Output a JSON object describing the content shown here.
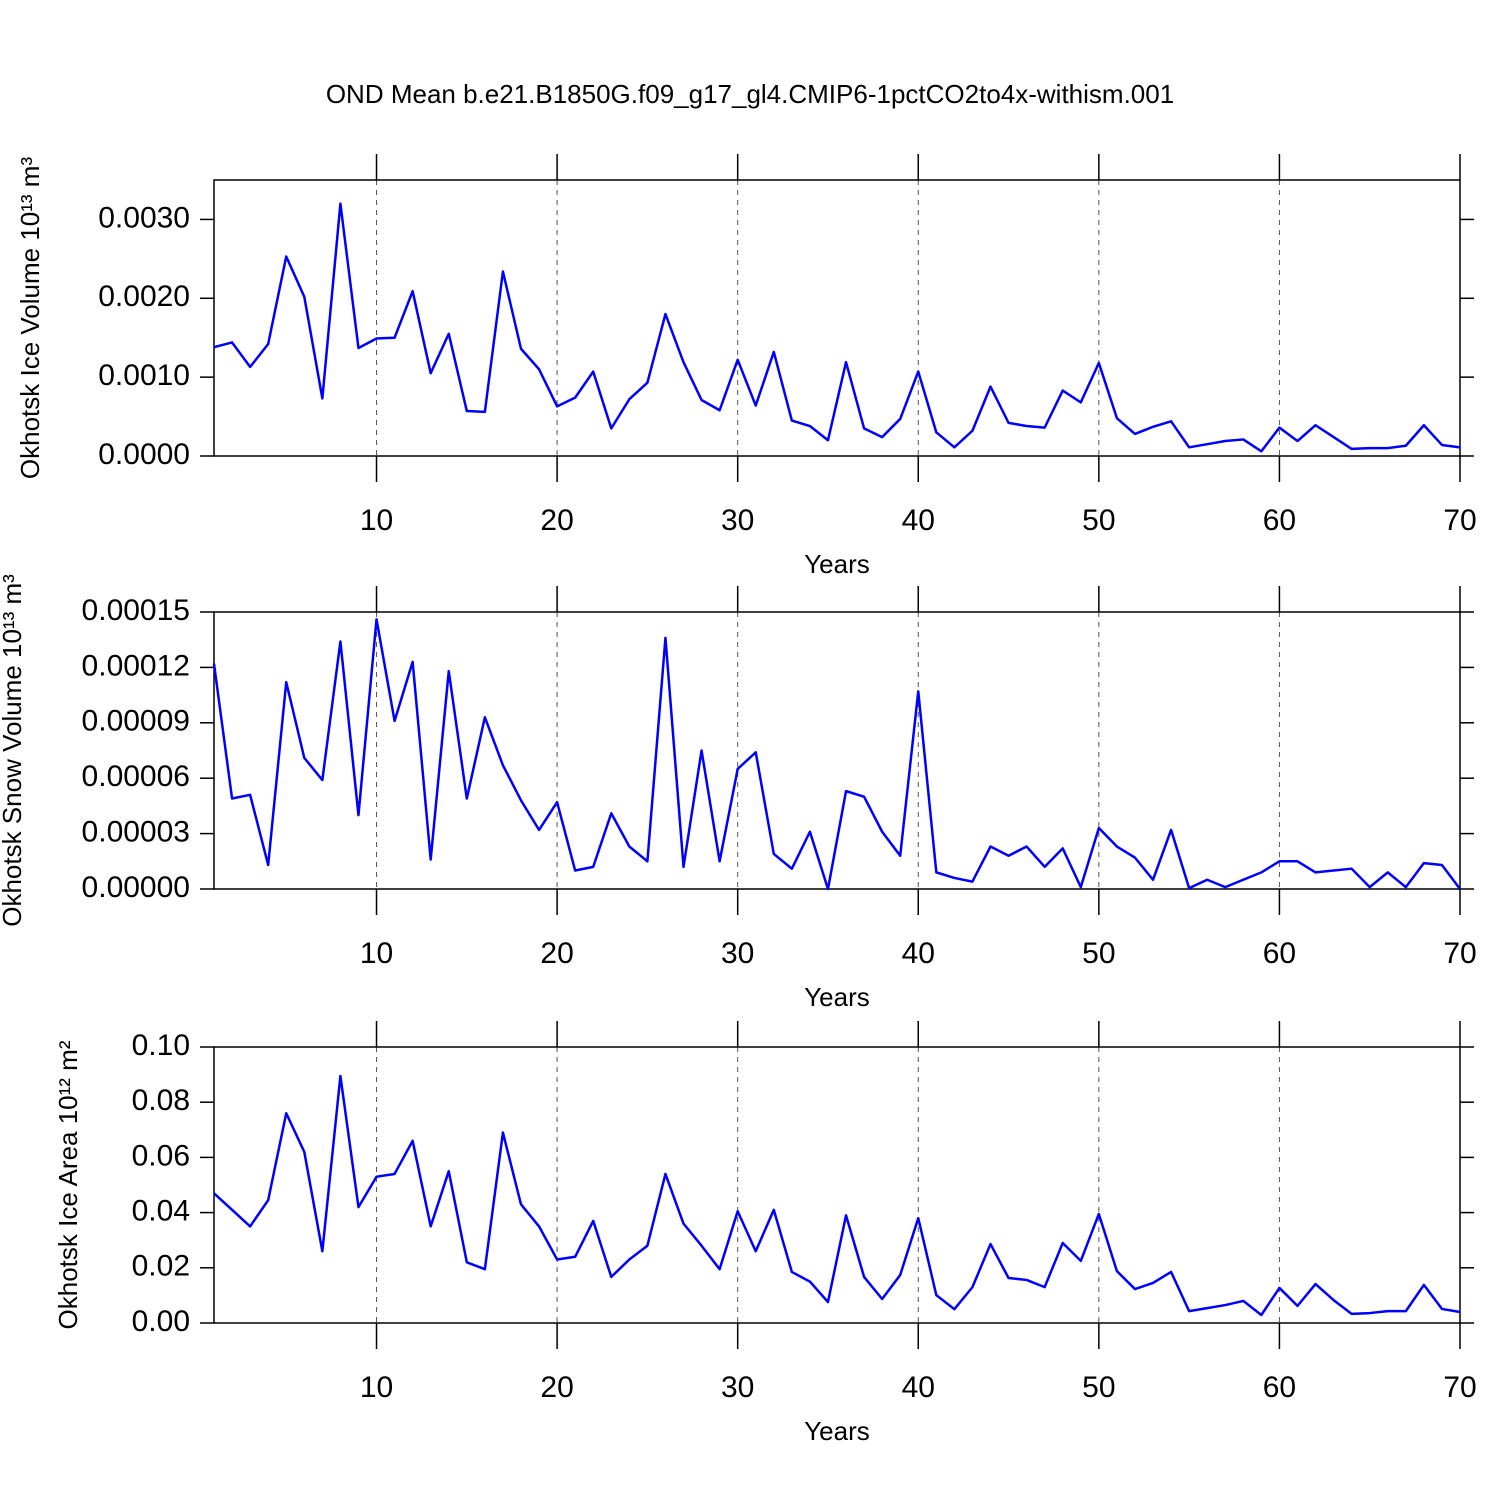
{
  "chart_data": [
    {
      "type": "line",
      "title": "OND Mean b.e21.B1850G.f09_g17_gl4.CMIP6-1pctCO2to4x-withism.001",
      "xlabel": "Years",
      "ylabel": "Okhotsk Ice Volume 10¹³ m³",
      "color": "#0000ff",
      "grid": true,
      "xlim": [
        1,
        70
      ],
      "xticks": [
        10,
        20,
        30,
        40,
        50,
        60,
        70
      ],
      "ylim": [
        0,
        0.0035
      ],
      "yticks": [
        {
          "value": 0,
          "label": "0.0000"
        },
        {
          "value": 0.001,
          "label": "0.0010"
        },
        {
          "value": 0.002,
          "label": "0.0020"
        },
        {
          "value": 0.003,
          "label": "0.0030"
        }
      ],
      "x": [
        1,
        2,
        3,
        4,
        5,
        6,
        7,
        8,
        9,
        10,
        11,
        12,
        13,
        14,
        15,
        16,
        17,
        18,
        19,
        20,
        21,
        22,
        23,
        24,
        25,
        26,
        27,
        28,
        29,
        30,
        31,
        32,
        33,
        34,
        35,
        36,
        37,
        38,
        39,
        40,
        41,
        42,
        43,
        44,
        45,
        46,
        47,
        48,
        49,
        50,
        51,
        52,
        53,
        54,
        55,
        56,
        57,
        58,
        59,
        60,
        61,
        62,
        63,
        64,
        65,
        66,
        67,
        68,
        69,
        70
      ],
      "values": [
        0.00138,
        0.00144,
        0.00113,
        0.00142,
        0.00253,
        0.00202,
        0.00073,
        0.0032,
        0.00137,
        0.00149,
        0.0015,
        0.00209,
        0.00105,
        0.00155,
        0.00057,
        0.00056,
        0.00234,
        0.00136,
        0.0011,
        0.00063,
        0.00074,
        0.00107,
        0.00035,
        0.00072,
        0.00093,
        0.0018,
        0.00119,
        0.00071,
        0.00058,
        0.00122,
        0.00064,
        0.00132,
        0.00045,
        0.00038,
        0.0002,
        0.00119,
        0.00035,
        0.00024,
        0.00047,
        0.00107,
        0.0003,
        0.00011,
        0.00032,
        0.00088,
        0.00042,
        0.00038,
        0.00036,
        0.00083,
        0.00068,
        0.00118,
        0.00048,
        0.00028,
        0.00037,
        0.00044,
        0.00011,
        0.00015,
        0.00019,
        0.00021,
        6e-05,
        0.00036,
        0.00019,
        0.00039,
        0.00024,
        9e-05,
        0.0001,
        0.0001,
        0.00013,
        0.00039,
        0.00014,
        0.00011
      ]
    },
    {
      "type": "line",
      "xlabel": "Years",
      "ylabel": "Okhotsk Snow Volume 10¹³ m³",
      "color": "#0000ff",
      "grid": true,
      "xlim": [
        1,
        70
      ],
      "xticks": [
        10,
        20,
        30,
        40,
        50,
        60,
        70
      ],
      "ylim": [
        0,
        0.00015
      ],
      "yticks": [
        {
          "value": 0,
          "label": "0.00000"
        },
        {
          "value": 3e-05,
          "label": "0.00003"
        },
        {
          "value": 6e-05,
          "label": "0.00006"
        },
        {
          "value": 9e-05,
          "label": "0.00009"
        },
        {
          "value": 0.00012,
          "label": "0.00012"
        },
        {
          "value": 0.00015,
          "label": "0.00015"
        }
      ],
      "x": [
        1,
        2,
        3,
        4,
        5,
        6,
        7,
        8,
        9,
        10,
        11,
        12,
        13,
        14,
        15,
        16,
        17,
        18,
        19,
        20,
        21,
        22,
        23,
        24,
        25,
        26,
        27,
        28,
        29,
        30,
        31,
        32,
        33,
        34,
        35,
        36,
        37,
        38,
        39,
        40,
        41,
        42,
        43,
        44,
        45,
        46,
        47,
        48,
        49,
        50,
        51,
        52,
        53,
        54,
        55,
        56,
        57,
        58,
        59,
        60,
        61,
        62,
        63,
        64,
        65,
        66,
        67,
        68,
        69,
        70
      ],
      "values": [
        0.000122,
        4.9e-05,
        5.1e-05,
        1.3e-05,
        0.000112,
        7.1e-05,
        5.9e-05,
        0.000134,
        4e-05,
        0.000146,
        9.1e-05,
        0.000123,
        1.6e-05,
        0.000118,
        4.9e-05,
        9.3e-05,
        6.7e-05,
        4.8e-05,
        3.2e-05,
        4.7e-05,
        1e-05,
        1.2e-05,
        4.1e-05,
        2.3e-05,
        1.5e-05,
        0.000136,
        1.2e-05,
        7.5e-05,
        1.5e-05,
        6.5e-05,
        7.4e-05,
        1.9e-05,
        1.1e-05,
        3.1e-05,
        0,
        5.3e-05,
        5e-05,
        3.1e-05,
        1.8e-05,
        0.000107,
        9e-06,
        6e-06,
        4e-06,
        2.3e-05,
        1.8e-05,
        2.3e-05,
        1.2e-05,
        2.2e-05,
        1e-06,
        3.3e-05,
        2.3e-05,
        1.7e-05,
        5e-06,
        3.2e-05,
        5e-07,
        5e-06,
        1e-06,
        5e-06,
        9e-06,
        1.5e-05,
        1.5e-05,
        9e-06,
        1e-05,
        1.1e-05,
        1e-06,
        9e-06,
        1e-06,
        1.4e-05,
        1.3e-05,
        0
      ]
    },
    {
      "type": "line",
      "xlabel": "Years",
      "ylabel": "Okhotsk Ice Area 10¹² m²",
      "color": "#0000ff",
      "grid": true,
      "xlim": [
        1,
        70
      ],
      "xticks": [
        10,
        20,
        30,
        40,
        50,
        60,
        70
      ],
      "ylim": [
        0,
        0.1
      ],
      "yticks": [
        {
          "value": 0,
          "label": "0.00"
        },
        {
          "value": 0.02,
          "label": "0.02"
        },
        {
          "value": 0.04,
          "label": "0.04"
        },
        {
          "value": 0.06,
          "label": "0.06"
        },
        {
          "value": 0.08,
          "label": "0.08"
        },
        {
          "value": 0.1,
          "label": "0.10"
        }
      ],
      "x": [
        1,
        2,
        3,
        4,
        5,
        6,
        7,
        8,
        9,
        10,
        11,
        12,
        13,
        14,
        15,
        16,
        17,
        18,
        19,
        20,
        21,
        22,
        23,
        24,
        25,
        26,
        27,
        28,
        29,
        30,
        31,
        32,
        33,
        34,
        35,
        36,
        37,
        38,
        39,
        40,
        41,
        42,
        43,
        44,
        45,
        46,
        47,
        48,
        49,
        50,
        51,
        52,
        53,
        54,
        55,
        56,
        57,
        58,
        59,
        60,
        61,
        62,
        63,
        64,
        65,
        66,
        67,
        68,
        69,
        70
      ],
      "values": [
        0.047,
        0.041,
        0.035,
        0.0445,
        0.076,
        0.062,
        0.026,
        0.0895,
        0.042,
        0.053,
        0.054,
        0.066,
        0.035,
        0.055,
        0.022,
        0.0195,
        0.069,
        0.043,
        0.035,
        0.023,
        0.024,
        0.037,
        0.0167,
        0.023,
        0.028,
        0.054,
        0.036,
        0.028,
        0.0195,
        0.0405,
        0.026,
        0.041,
        0.0185,
        0.015,
        0.0076,
        0.039,
        0.0167,
        0.0087,
        0.0174,
        0.038,
        0.0101,
        0.005,
        0.013,
        0.0286,
        0.0163,
        0.0156,
        0.013,
        0.029,
        0.0225,
        0.0395,
        0.0188,
        0.0123,
        0.0145,
        0.0185,
        0.0043,
        0.0054,
        0.0065,
        0.008,
        0.0029,
        0.0127,
        0.0062,
        0.0141,
        0.0083,
        0.0033,
        0.0036,
        0.0043,
        0.0043,
        0.0138,
        0.0051,
        0.004
      ]
    }
  ]
}
